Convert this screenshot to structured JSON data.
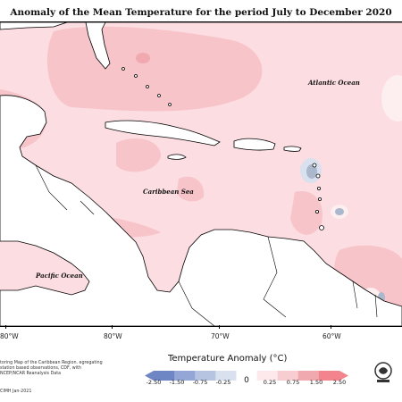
{
  "title": "Anomaly of the Mean Temperature for the period July to December 2020",
  "map": {
    "labels": {
      "atlantic": "Atlantic Ocean",
      "caribbean": "Caribbean Sea",
      "pacific": "Pacific Ocean"
    },
    "longitudes": [
      "80°W",
      "80°W",
      "70°W",
      "60°W"
    ]
  },
  "legend": {
    "title": "Temperature Anomaly (°C)",
    "labels": [
      "-2.50",
      "-1.50",
      "-0.75",
      "-0.25",
      "0",
      "0.25",
      "0.75",
      "1.50",
      "2.50"
    ],
    "colors": [
      "#6f86c4",
      "#93a6d6",
      "#b6c4e2",
      "#d9e1ee",
      "#ffffff",
      "#fde9eb",
      "#f7cdd2",
      "#f1a9b0",
      "#f3848d"
    ]
  },
  "credits": "toring Map of the Caribbean Region. egregating station based observations, CDF, with NCEP/NCAR Reanalysis Data",
  "copyright": "CIMH Jan-2021",
  "colors": {
    "ocean_anomaly": "#fcdde1",
    "warm_anomaly": "#f7c4ca",
    "cool_anomaly": "#aab7cc",
    "land": "#ffffff"
  }
}
